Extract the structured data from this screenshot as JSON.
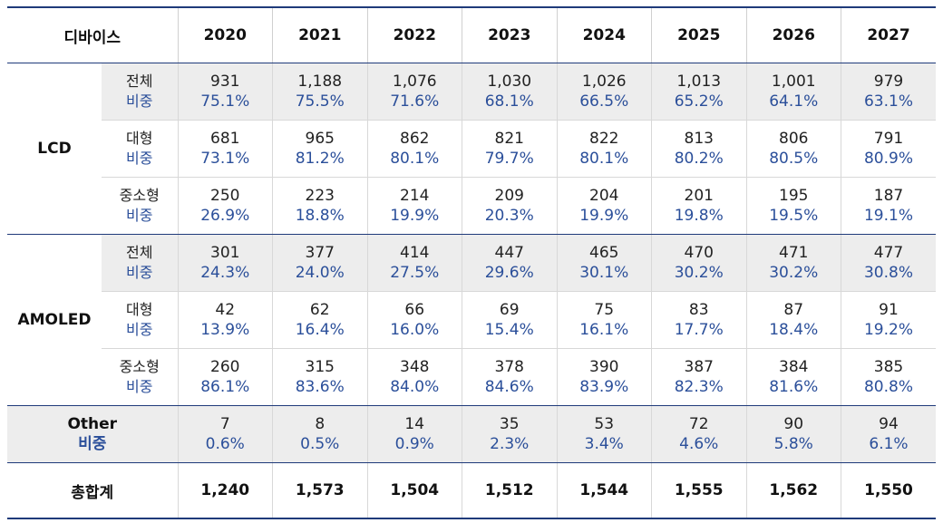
{
  "header": {
    "device_label": "디바이스",
    "years": [
      "2020",
      "2021",
      "2022",
      "2023",
      "2024",
      "2025",
      "2026",
      "2027"
    ]
  },
  "lcd": {
    "label": "LCD",
    "rows": [
      {
        "sub": "전체",
        "share_label": "비중",
        "values": [
          "931",
          "1,188",
          "1,076",
          "1,030",
          "1,026",
          "1,013",
          "1,001",
          "979"
        ],
        "shares": [
          "75.1%",
          "75.5%",
          "71.6%",
          "68.1%",
          "66.5%",
          "65.2%",
          "64.1%",
          "63.1%"
        ]
      },
      {
        "sub": "대형",
        "share_label": "비중",
        "values": [
          "681",
          "965",
          "862",
          "821",
          "822",
          "813",
          "806",
          "791"
        ],
        "shares": [
          "73.1%",
          "81.2%",
          "80.1%",
          "79.7%",
          "80.1%",
          "80.2%",
          "80.5%",
          "80.9%"
        ]
      },
      {
        "sub": "중소형",
        "share_label": "비중",
        "values": [
          "250",
          "223",
          "214",
          "209",
          "204",
          "201",
          "195",
          "187"
        ],
        "shares": [
          "26.9%",
          "18.8%",
          "19.9%",
          "20.3%",
          "19.9%",
          "19.8%",
          "19.5%",
          "19.1%"
        ]
      }
    ]
  },
  "amoled": {
    "label": "AMOLED",
    "rows": [
      {
        "sub": "전체",
        "share_label": "비중",
        "values": [
          "301",
          "377",
          "414",
          "447",
          "465",
          "470",
          "471",
          "477"
        ],
        "shares": [
          "24.3%",
          "24.0%",
          "27.5%",
          "29.6%",
          "30.1%",
          "30.2%",
          "30.2%",
          "30.8%"
        ]
      },
      {
        "sub": "대형",
        "share_label": "비중",
        "values": [
          "42",
          "62",
          "66",
          "69",
          "75",
          "83",
          "87",
          "91"
        ],
        "shares": [
          "13.9%",
          "16.4%",
          "16.0%",
          "15.4%",
          "16.1%",
          "17.7%",
          "18.4%",
          "19.2%"
        ]
      },
      {
        "sub": "중소형",
        "share_label": "비중",
        "values": [
          "260",
          "315",
          "348",
          "378",
          "390",
          "387",
          "384",
          "385"
        ],
        "shares": [
          "86.1%",
          "83.6%",
          "84.0%",
          "84.6%",
          "83.9%",
          "82.3%",
          "81.6%",
          "80.8%"
        ]
      }
    ]
  },
  "other": {
    "label": "Other",
    "share_label": "비중",
    "values": [
      "7",
      "8",
      "14",
      "35",
      "53",
      "72",
      "90",
      "94"
    ],
    "shares": [
      "0.6%",
      "0.5%",
      "0.9%",
      "2.3%",
      "3.4%",
      "4.6%",
      "5.8%",
      "6.1%"
    ]
  },
  "total": {
    "label": "총합계",
    "values": [
      "1,240",
      "1,573",
      "1,504",
      "1,512",
      "1,544",
      "1,555",
      "1,562",
      "1,550"
    ]
  },
  "colors": {
    "border_accent": "#1f3a7a",
    "share_text": "#2b4f9a",
    "shaded_row": "#ededed"
  }
}
